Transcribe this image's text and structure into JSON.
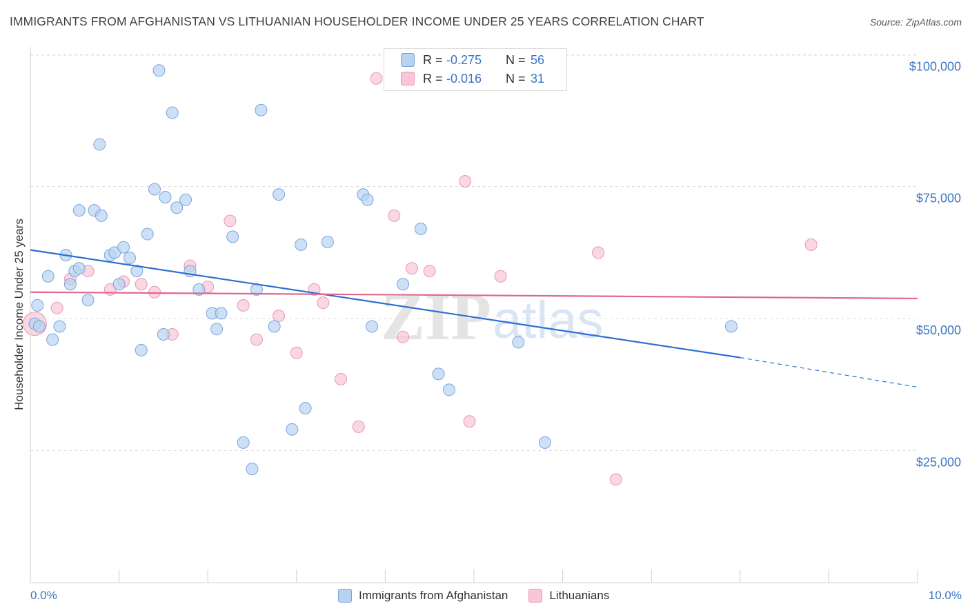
{
  "title": "IMMIGRANTS FROM AFGHANISTAN VS LITHUANIAN HOUSEHOLDER INCOME UNDER 25 YEARS CORRELATION CHART",
  "source": "Source: ZipAtlas.com",
  "watermark": {
    "zip": "ZIP",
    "atlas": "atlas"
  },
  "stats": [
    {
      "r_label": "R =",
      "r_value": "-0.275",
      "n_label": "N =",
      "n_value": "56"
    },
    {
      "r_label": "R =",
      "r_value": "-0.016",
      "n_label": "N =",
      "n_value": "31"
    }
  ],
  "colors": {
    "blue_fill": "#b8d3f2",
    "blue_stroke": "#7aa6d9",
    "blue_line": "#2c6fd1",
    "pink_fill": "#f8c6d6",
    "pink_stroke": "#e898b4",
    "pink_line": "#e0668e",
    "grid": "#dcdcdc",
    "axis_text": "#3a75c4"
  },
  "chart_data": {
    "type": "scatter",
    "title": "IMMIGRANTS FROM AFGHANISTAN VS LITHUANIAN HOUSEHOLDER INCOME UNDER 25 YEARS CORRELATION CHART",
    "xlabel": "",
    "ylabel": "Householder Income Under 25 years",
    "xlim": [
      0,
      10
    ],
    "ylim": [
      5000,
      106000
    ],
    "x_tick_labels": [
      "0.0%",
      "10.0%"
    ],
    "y_ticks": [
      25000,
      50000,
      75000,
      100000
    ],
    "y_tick_labels": [
      "$25,000",
      "$50,000",
      "$75,000",
      "$100,000"
    ],
    "grid": true,
    "legend_position": "bottom-center",
    "series": [
      {
        "name": "Immigrants from Afghanistan",
        "color": "#b8d3f2",
        "points": [
          [
            0.05,
            49000
          ],
          [
            0.08,
            52500
          ],
          [
            0.1,
            48500
          ],
          [
            0.2,
            58000
          ],
          [
            0.25,
            46000
          ],
          [
            0.33,
            48500
          ],
          [
            0.4,
            62000
          ],
          [
            0.45,
            56500
          ],
          [
            0.5,
            59000
          ],
          [
            0.55,
            59500
          ],
          [
            0.65,
            53500
          ],
          [
            0.55,
            70500
          ],
          [
            0.72,
            70500
          ],
          [
            0.8,
            69500
          ],
          [
            0.78,
            83000
          ],
          [
            0.9,
            62000
          ],
          [
            0.95,
            62500
          ],
          [
            1.0,
            56500
          ],
          [
            1.05,
            63500
          ],
          [
            1.12,
            61500
          ],
          [
            1.2,
            59000
          ],
          [
            1.25,
            44000
          ],
          [
            1.32,
            66000
          ],
          [
            1.4,
            74500
          ],
          [
            1.45,
            97000
          ],
          [
            1.5,
            47000
          ],
          [
            1.52,
            73000
          ],
          [
            1.6,
            89000
          ],
          [
            1.65,
            71000
          ],
          [
            1.75,
            72500
          ],
          [
            1.8,
            59000
          ],
          [
            1.9,
            55500
          ],
          [
            2.05,
            51000
          ],
          [
            2.15,
            51000
          ],
          [
            2.1,
            48000
          ],
          [
            2.28,
            65500
          ],
          [
            2.4,
            26500
          ],
          [
            2.5,
            21500
          ],
          [
            2.55,
            55500
          ],
          [
            2.6,
            89500
          ],
          [
            2.75,
            48500
          ],
          [
            2.8,
            73500
          ],
          [
            2.95,
            29000
          ],
          [
            3.05,
            64000
          ],
          [
            3.1,
            33000
          ],
          [
            3.35,
            64500
          ],
          [
            3.75,
            73500
          ],
          [
            3.8,
            72500
          ],
          [
            3.85,
            48500
          ],
          [
            4.2,
            56500
          ],
          [
            4.4,
            67000
          ],
          [
            4.6,
            39500
          ],
          [
            4.72,
            36500
          ],
          [
            5.5,
            45500
          ],
          [
            5.8,
            26500
          ],
          [
            7.9,
            48500
          ]
        ]
      },
      {
        "name": "Lithuanians",
        "color": "#f8c6d6",
        "points": [
          [
            0.05,
            49000
          ],
          [
            0.3,
            52000
          ],
          [
            0.45,
            57500
          ],
          [
            0.65,
            59000
          ],
          [
            0.9,
            55500
          ],
          [
            1.05,
            57000
          ],
          [
            1.25,
            56500
          ],
          [
            1.4,
            55000
          ],
          [
            1.6,
            47000
          ],
          [
            1.8,
            60000
          ],
          [
            2.0,
            56000
          ],
          [
            2.25,
            68500
          ],
          [
            2.4,
            52500
          ],
          [
            2.55,
            46000
          ],
          [
            2.8,
            50500
          ],
          [
            3.0,
            43500
          ],
          [
            3.2,
            55500
          ],
          [
            3.3,
            53000
          ],
          [
            3.5,
            38500
          ],
          [
            3.7,
            29500
          ],
          [
            3.9,
            95500
          ],
          [
            4.1,
            69500
          ],
          [
            4.2,
            46500
          ],
          [
            4.3,
            59500
          ],
          [
            4.5,
            59000
          ],
          [
            4.9,
            76000
          ],
          [
            4.95,
            30500
          ],
          [
            5.3,
            58000
          ],
          [
            6.4,
            62500
          ],
          [
            6.6,
            19500
          ],
          [
            8.8,
            64000
          ]
        ]
      }
    ],
    "trend_lines": [
      {
        "series": "Immigrants from Afghanistan",
        "solid": [
          [
            0,
            63000
          ],
          [
            8.0,
            42600
          ]
        ],
        "dashed": [
          [
            8.0,
            42600
          ],
          [
            10,
            37000
          ]
        ]
      },
      {
        "series": "Lithuanians",
        "solid": [
          [
            0,
            55000
          ],
          [
            10,
            53800
          ]
        ]
      }
    ]
  }
}
